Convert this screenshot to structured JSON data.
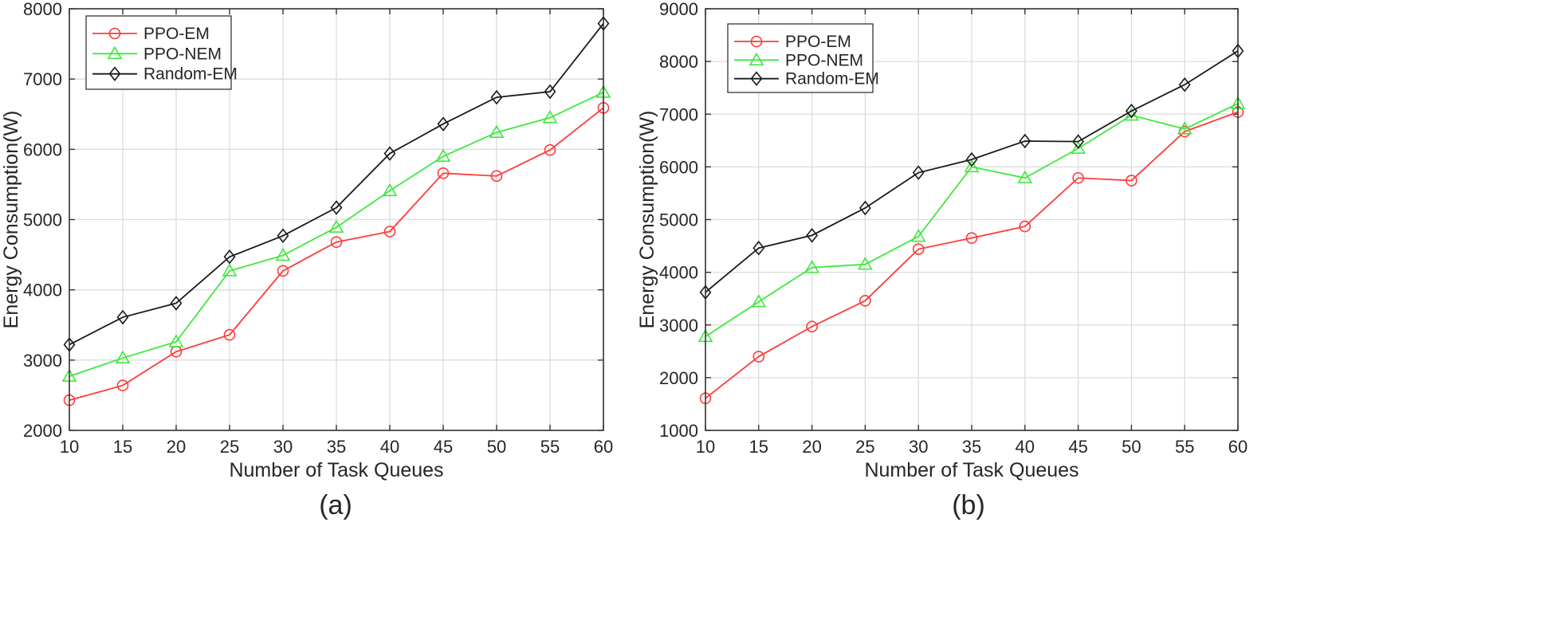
{
  "colors": {
    "PPO-EM": "#ff3b3b",
    "PPO-NEM": "#3ee83e",
    "Random-EM": "#1a1a1a"
  },
  "chart_data": [
    {
      "type": "line",
      "caption": "(a)",
      "xlabel": "Number of Task Queues",
      "ylabel": "Energy Consumption(W)",
      "xlim": [
        10,
        60
      ],
      "ylim": [
        2000,
        8000
      ],
      "xticks": [
        "10",
        "15",
        "20",
        "25",
        "30",
        "35",
        "40",
        "45",
        "50",
        "55",
        "60"
      ],
      "yticks": [
        "2000",
        "3000",
        "4000",
        "5000",
        "6000",
        "7000",
        "8000"
      ],
      "x": [
        10,
        15,
        20,
        25,
        30,
        35,
        40,
        45,
        50,
        55,
        60
      ],
      "grid": true,
      "legend_position": "top-left",
      "series": [
        {
          "name": "PPO-EM",
          "marker": "circle",
          "values": [
            2430,
            2640,
            3120,
            3360,
            4270,
            4680,
            4830,
            5660,
            5620,
            5990,
            6590
          ]
        },
        {
          "name": "PPO-NEM",
          "marker": "triangle",
          "values": [
            2770,
            3030,
            3260,
            4270,
            4490,
            4890,
            5410,
            5900,
            6240,
            6450,
            6810
          ]
        },
        {
          "name": "Random-EM",
          "marker": "diamond",
          "values": [
            3220,
            3610,
            3810,
            4470,
            4770,
            5170,
            5940,
            6360,
            6740,
            6820,
            7790
          ]
        }
      ]
    },
    {
      "type": "line",
      "caption": "(b)",
      "xlabel": "Number of Task Queues",
      "ylabel": "Energy Consumption(W)",
      "xlim": [
        10,
        60
      ],
      "ylim": [
        1000,
        9000
      ],
      "xticks": [
        "10",
        "15",
        "20",
        "25",
        "30",
        "35",
        "40",
        "45",
        "50",
        "55",
        "60"
      ],
      "yticks": [
        "1000",
        "2000",
        "3000",
        "4000",
        "5000",
        "6000",
        "7000",
        "8000",
        "9000"
      ],
      "x": [
        10,
        15,
        20,
        25,
        30,
        35,
        40,
        45,
        50,
        55,
        60
      ],
      "grid": true,
      "legend_position": "top-left",
      "series": [
        {
          "name": "PPO-EM",
          "marker": "circle",
          "values": [
            1610,
            2400,
            2970,
            3460,
            4440,
            4650,
            4870,
            5790,
            5740,
            6670,
            7040
          ]
        },
        {
          "name": "PPO-NEM",
          "marker": "triangle",
          "values": [
            2780,
            3440,
            4090,
            4150,
            4680,
            6000,
            5790,
            6350,
            6980,
            6720,
            7200
          ]
        },
        {
          "name": "Random-EM",
          "marker": "diamond",
          "values": [
            3620,
            4460,
            4700,
            5220,
            5890,
            6140,
            6490,
            6480,
            7060,
            7560,
            8200
          ]
        }
      ]
    }
  ]
}
